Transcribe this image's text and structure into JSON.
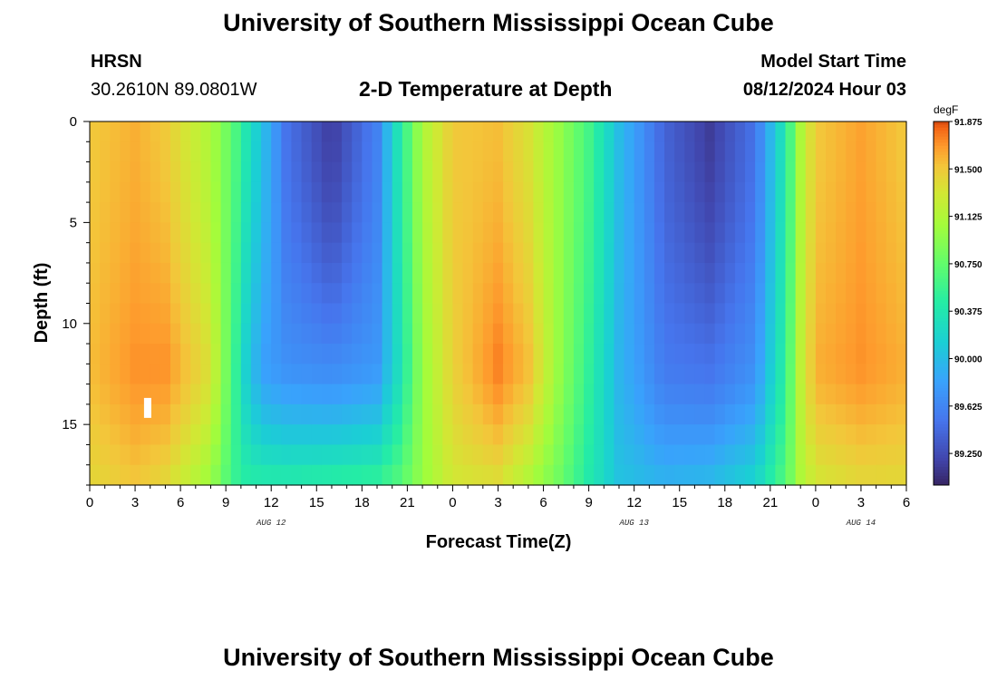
{
  "header": {
    "title": "University of Southern Mississippi Ocean Cube",
    "station": "HRSN",
    "coords": "30.2610N  89.0801W",
    "plot_title": "2-D Temperature at Depth",
    "model_label": "Model Start Time",
    "model_time": "08/12/2024 Hour 03"
  },
  "footer": {
    "title": "University of Southern Mississippi Ocean Cube"
  },
  "chart_data": {
    "type": "heatmap",
    "title": "2-D Temperature at Depth",
    "xlabel": "Forecast Time(Z)",
    "ylabel": "Depth (ft)",
    "x_hours_since_start": [
      0,
      54
    ],
    "y_depth_range_ft": [
      0,
      18
    ],
    "x_ticks": [
      {
        "h": 0,
        "label": "0"
      },
      {
        "h": 3,
        "label": "3"
      },
      {
        "h": 6,
        "label": "6"
      },
      {
        "h": 9,
        "label": "9"
      },
      {
        "h": 12,
        "label": "12"
      },
      {
        "h": 15,
        "label": "15"
      },
      {
        "h": 18,
        "label": "18"
      },
      {
        "h": 21,
        "label": "21"
      },
      {
        "h": 24,
        "label": "0"
      },
      {
        "h": 27,
        "label": "3"
      },
      {
        "h": 30,
        "label": "6"
      },
      {
        "h": 33,
        "label": "9"
      },
      {
        "h": 36,
        "label": "12"
      },
      {
        "h": 39,
        "label": "15"
      },
      {
        "h": 42,
        "label": "18"
      },
      {
        "h": 45,
        "label": "21"
      },
      {
        "h": 48,
        "label": "0"
      },
      {
        "h": 51,
        "label": "3"
      },
      {
        "h": 54,
        "label": "6"
      }
    ],
    "date_labels": [
      {
        "h": 12,
        "label": "AUG 12"
      },
      {
        "h": 36,
        "label": "AUG 13"
      },
      {
        "h": 51,
        "label": "AUG 14"
      }
    ],
    "y_ticks": [
      0,
      5,
      10,
      15
    ],
    "colorbar": {
      "unit": "degF",
      "min": 89.0,
      "max": 91.875,
      "tick_values": [
        91.875,
        91.5,
        91.125,
        90.75,
        90.375,
        90.0,
        89.625,
        89.25
      ],
      "tick_labels": [
        "91.875",
        "91.500",
        "91.125",
        "90.750",
        "90.375",
        "90.000",
        "89.625",
        "89.250"
      ]
    },
    "depth_profile": {
      "hours": [
        0,
        3,
        5,
        8,
        9.5,
        10.5,
        11.5,
        13,
        16,
        19,
        20.5,
        22,
        24,
        27,
        29,
        31,
        33,
        35,
        38,
        41,
        44,
        46,
        47,
        48,
        51,
        54
      ],
      "surface_degF": [
        91.5,
        91.6,
        91.5,
        91.1,
        90.7,
        90.3,
        90.0,
        89.5,
        89.15,
        89.6,
        90.4,
        91.1,
        91.5,
        91.55,
        91.35,
        91.0,
        90.6,
        90.0,
        89.4,
        89.15,
        89.5,
        90.4,
        91.1,
        91.5,
        91.65,
        91.5
      ],
      "mid_12ft_degF": [
        91.55,
        91.7,
        91.7,
        91.35,
        90.6,
        90.05,
        89.8,
        89.7,
        89.65,
        89.75,
        90.3,
        91.0,
        91.45,
        91.75,
        91.55,
        91.0,
        90.5,
        89.95,
        89.55,
        89.5,
        89.7,
        90.5,
        91.2,
        91.6,
        91.7,
        91.6
      ],
      "bottom_18ft_degF": [
        91.4,
        91.5,
        91.4,
        91.0,
        90.55,
        90.45,
        90.45,
        90.45,
        90.5,
        90.55,
        90.7,
        91.0,
        91.3,
        91.35,
        91.1,
        90.8,
        90.4,
        90.05,
        89.95,
        90.0,
        90.2,
        90.7,
        91.1,
        91.3,
        91.4,
        91.4
      ]
    },
    "marker": {
      "hour": 3.8,
      "depth_ft": 14
    }
  }
}
